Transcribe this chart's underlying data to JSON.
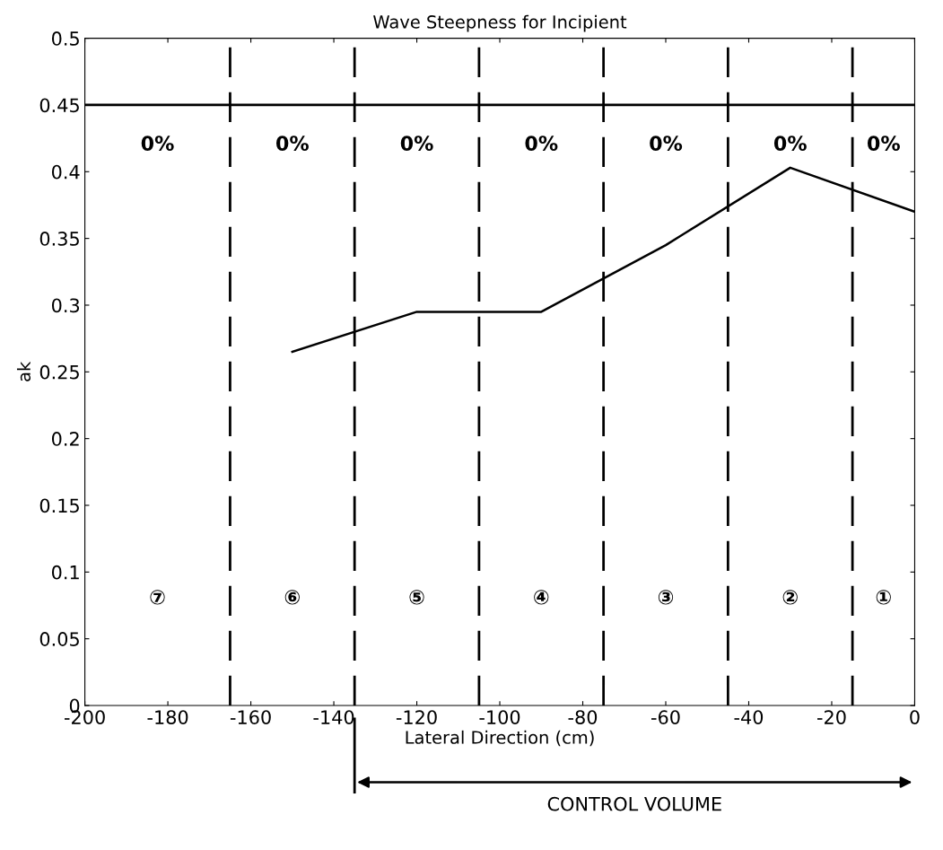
{
  "chart_data": {
    "type": "line",
    "title": "Wave Steepness for Incipient",
    "xlabel": "Lateral Direction (cm)",
    "ylabel": "ak",
    "x": [
      -150,
      -120,
      -90,
      -60,
      -30,
      0
    ],
    "series": [
      {
        "color": "#000000",
        "values": [
          0.265,
          0.295,
          0.295,
          0.345,
          0.403,
          0.37
        ]
      }
    ],
    "xlim": [
      -200,
      0
    ],
    "xticks": [
      -200,
      -180,
      -160,
      -140,
      -120,
      -100,
      -80,
      -60,
      -40,
      -20,
      0
    ],
    "ylim": [
      0,
      0.5
    ],
    "yticks": [
      0,
      0.05,
      0.1,
      0.15,
      0.2,
      0.25,
      0.3,
      0.35,
      0.4,
      0.45,
      0.5
    ],
    "grid": false,
    "legend": false,
    "marker": "none",
    "line_style": "solid",
    "ref_lines": [
      {
        "axis": "y",
        "value": 0.45,
        "color": "#000000",
        "line_style": "solid"
      },
      {
        "axis": "x",
        "value": -165,
        "color": "#000000",
        "line_style": "dashed"
      },
      {
        "axis": "x",
        "value": -135,
        "color": "#000000",
        "line_style": "dashed"
      },
      {
        "axis": "x",
        "value": -105,
        "color": "#000000",
        "line_style": "dashed"
      },
      {
        "axis": "x",
        "value": -75,
        "color": "#000000",
        "line_style": "dashed"
      },
      {
        "axis": "x",
        "value": -45,
        "color": "#000000",
        "line_style": "dashed"
      },
      {
        "axis": "x",
        "value": -15,
        "color": "#000000",
        "line_style": "dashed"
      }
    ],
    "annotations": [
      "0%",
      "0%",
      "0%",
      "0%",
      "0%",
      "0%",
      "0%",
      "⑦",
      "⑥",
      "⑤",
      "④",
      "③",
      "②",
      "①",
      "CONTROL VOLUME"
    ]
  }
}
